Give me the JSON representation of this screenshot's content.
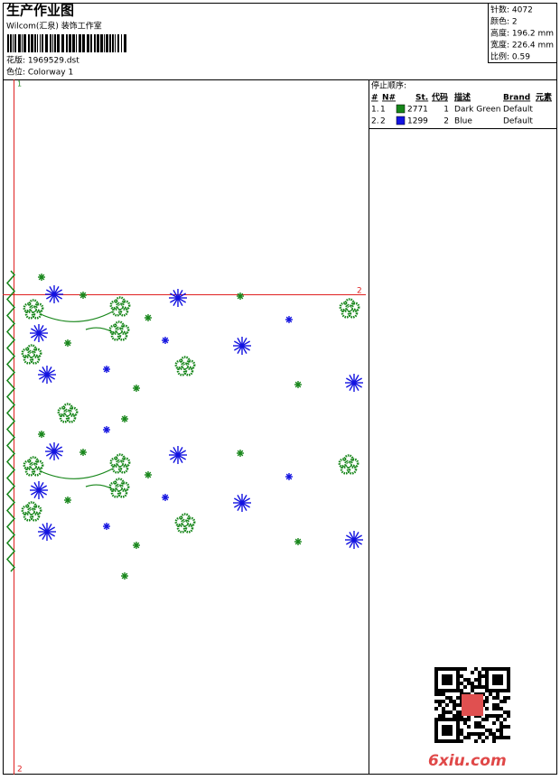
{
  "header": {
    "title": "生产作业图",
    "subtitle": "Wilcom(汇泉) 装饰工作室",
    "design_label": "花版: 1969529.dst",
    "colorway_label": "色位: Colorway 1"
  },
  "info": [
    "针数: 4072",
    "颜色: 2",
    "高度: 196.2 mm",
    "宽度: 226.4 mm",
    "比例: 0.59"
  ],
  "stop_sequence": {
    "title": "停止顺序:",
    "columns": [
      "#",
      "N#",
      "St.",
      "代码",
      "描述",
      "Brand",
      "元素"
    ],
    "rows": [
      {
        "index": "1.",
        "needle": "1",
        "stitches": 2771,
        "code": "1",
        "description": "Dark Green",
        "brand": "Default",
        "color": "#17861a"
      },
      {
        "index": "2.",
        "needle": "2",
        "stitches": 1299,
        "code": "2",
        "description": "Blue",
        "brand": "Default",
        "color": "#1414e0"
      }
    ]
  },
  "markers": {
    "start": "1",
    "axis_end": "2",
    "bottom": "2"
  },
  "watermark": "6xiu.com"
}
